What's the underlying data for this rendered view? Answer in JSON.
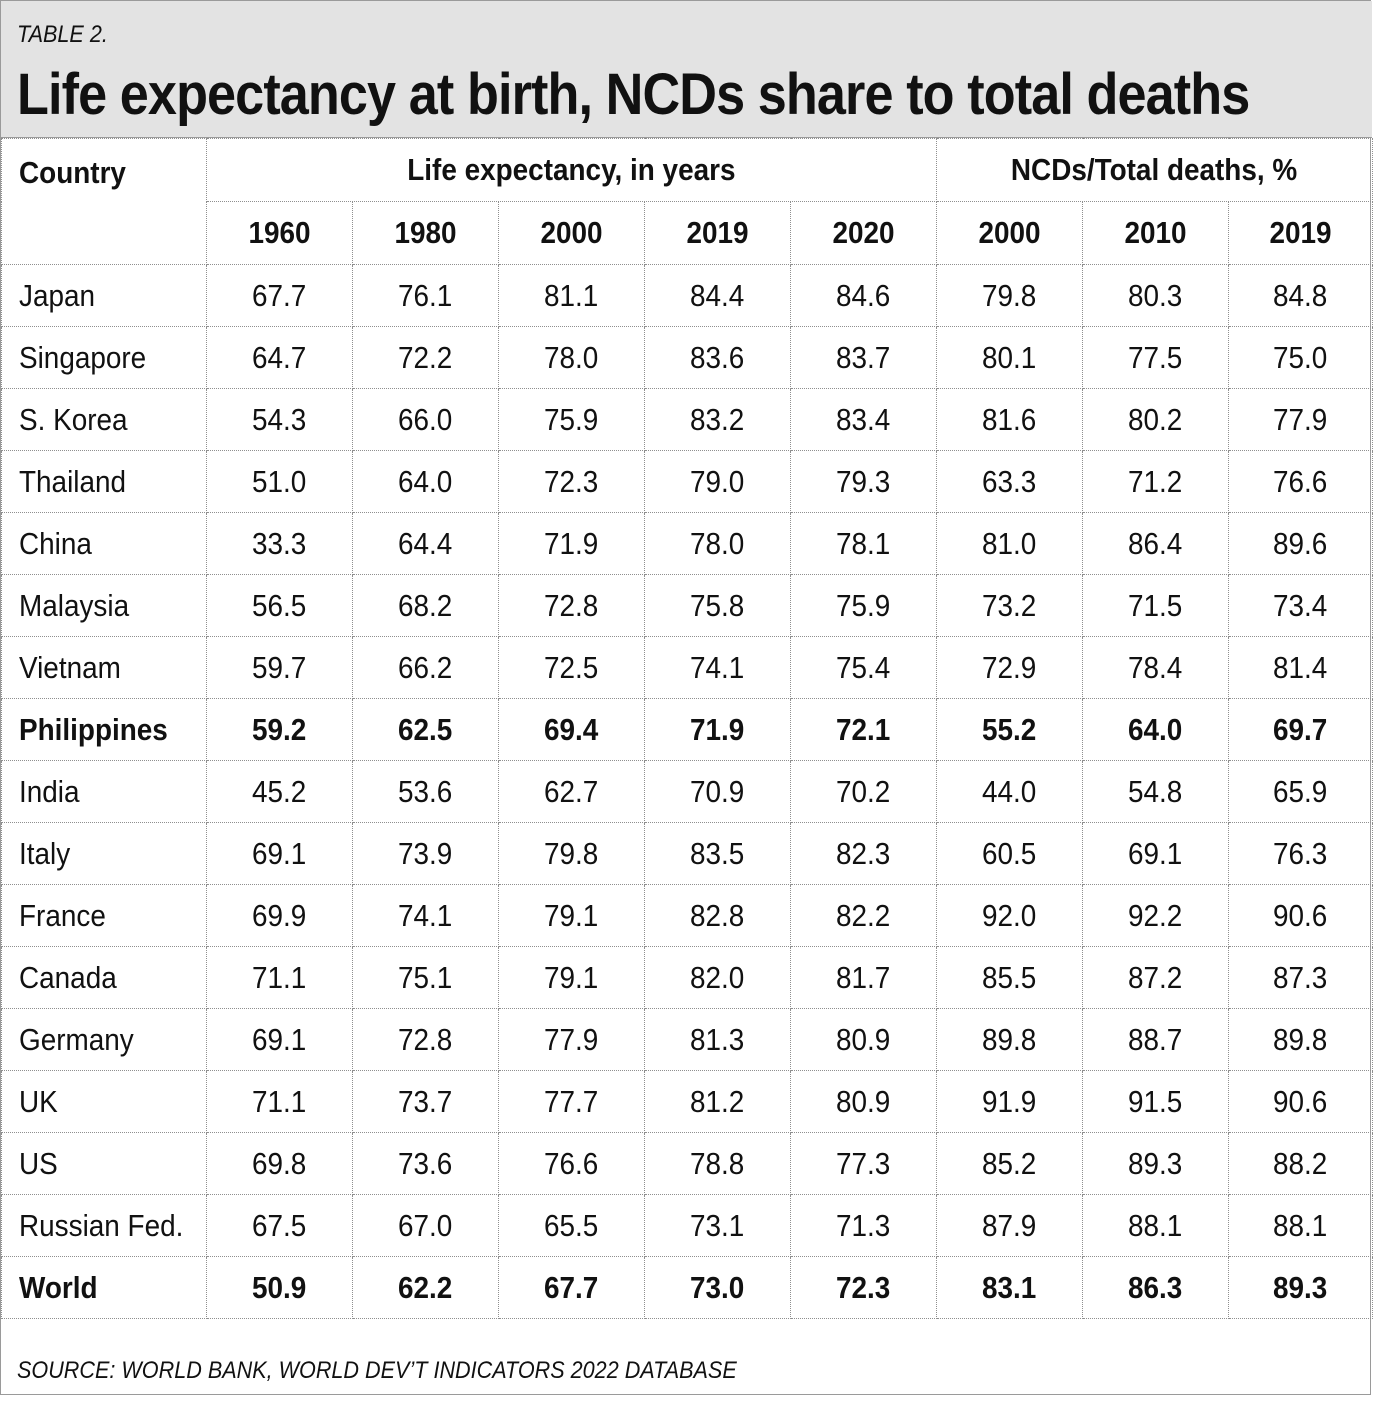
{
  "header": {
    "table_label": "TABLE 2.",
    "title": "Life expectancy at birth, NCDs share to total deaths"
  },
  "columns": {
    "country_header": "Country",
    "group_life": "Life expectancy, in years",
    "group_ncd": "NCDs/Total deaths, %",
    "years": [
      "1960",
      "1980",
      "2000",
      "2019",
      "2020",
      "2000",
      "2010",
      "2019"
    ]
  },
  "rows": [
    {
      "country": "Japan",
      "values": [
        "67.7",
        "76.1",
        "81.1",
        "84.4",
        "84.6",
        "79.8",
        "80.3",
        "84.8"
      ],
      "bold": false
    },
    {
      "country": "Singapore",
      "values": [
        "64.7",
        "72.2",
        "78.0",
        "83.6",
        "83.7",
        "80.1",
        "77.5",
        "75.0"
      ],
      "bold": false
    },
    {
      "country": "S. Korea",
      "values": [
        "54.3",
        "66.0",
        "75.9",
        "83.2",
        "83.4",
        "81.6",
        "80.2",
        "77.9"
      ],
      "bold": false
    },
    {
      "country": "Thailand",
      "values": [
        "51.0",
        "64.0",
        "72.3",
        "79.0",
        "79.3",
        "63.3",
        "71.2",
        "76.6"
      ],
      "bold": false
    },
    {
      "country": "China",
      "values": [
        "33.3",
        "64.4",
        "71.9",
        "78.0",
        "78.1",
        "81.0",
        "86.4",
        "89.6"
      ],
      "bold": false
    },
    {
      "country": "Malaysia",
      "values": [
        "56.5",
        "68.2",
        "72.8",
        "75.8",
        "75.9",
        "73.2",
        "71.5",
        "73.4"
      ],
      "bold": false
    },
    {
      "country": "Vietnam",
      "values": [
        "59.7",
        "66.2",
        "72.5",
        "74.1",
        "75.4",
        "72.9",
        "78.4",
        "81.4"
      ],
      "bold": false
    },
    {
      "country": "Philippines",
      "values": [
        "59.2",
        "62.5",
        "69.4",
        "71.9",
        "72.1",
        "55.2",
        "64.0",
        "69.7"
      ],
      "bold": true
    },
    {
      "country": "India",
      "values": [
        "45.2",
        "53.6",
        "62.7",
        "70.9",
        "70.2",
        "44.0",
        "54.8",
        "65.9"
      ],
      "bold": false
    },
    {
      "country": "Italy",
      "values": [
        "69.1",
        "73.9",
        "79.8",
        "83.5",
        "82.3",
        "60.5",
        "69.1",
        "76.3"
      ],
      "bold": false
    },
    {
      "country": "France",
      "values": [
        "69.9",
        "74.1",
        "79.1",
        "82.8",
        "82.2",
        "92.0",
        "92.2",
        "90.6"
      ],
      "bold": false
    },
    {
      "country": "Canada",
      "values": [
        "71.1",
        "75.1",
        "79.1",
        "82.0",
        "81.7",
        "85.5",
        "87.2",
        "87.3"
      ],
      "bold": false
    },
    {
      "country": "Germany",
      "values": [
        "69.1",
        "72.8",
        "77.9",
        "81.3",
        "80.9",
        "89.8",
        "88.7",
        "89.8"
      ],
      "bold": false
    },
    {
      "country": "UK",
      "values": [
        "71.1",
        "73.7",
        "77.7",
        "81.2",
        "80.9",
        "91.9",
        "91.5",
        "90.6"
      ],
      "bold": false
    },
    {
      "country": "US",
      "values": [
        "69.8",
        "73.6",
        "76.6",
        "78.8",
        "77.3",
        "85.2",
        "89.3",
        "88.2"
      ],
      "bold": false
    },
    {
      "country": "Russian Fed.",
      "values": [
        "67.5",
        "67.0",
        "65.5",
        "73.1",
        "71.3",
        "87.9",
        "88.1",
        "88.1"
      ],
      "bold": false
    },
    {
      "country": "World",
      "values": [
        "50.9",
        "62.2",
        "67.7",
        "73.0",
        "72.3",
        "83.1",
        "86.3",
        "89.3"
      ],
      "bold": true
    }
  ],
  "footer": {
    "source": "SOURCE: WORLD BANK, WORLD DEV’T INDICATORS 2022 DATABASE"
  }
}
